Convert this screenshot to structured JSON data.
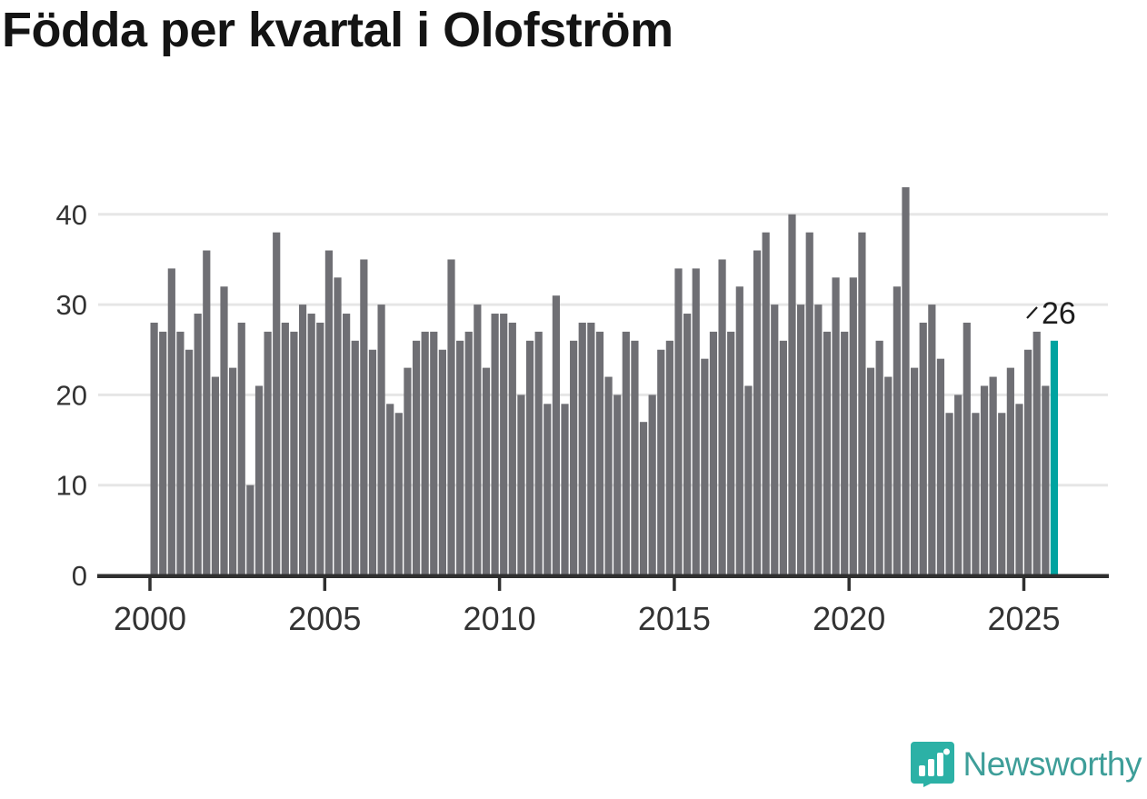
{
  "title": "Födda per kvartal i Olofström",
  "annotation": {
    "last_value_label": "26"
  },
  "logo": {
    "text": "Newsworthy",
    "icon": "newsworthy-bars-icon"
  },
  "colors": {
    "bar": "#6f6f74",
    "highlight": "#00a3a0",
    "grid": "#e6e6e6",
    "axis": "#2f2f2f",
    "tick_label": "#333333",
    "annotation_text": "#1d1d1d",
    "logo_icon": "#2cb1a6",
    "logo_text": "#3e9e99"
  },
  "chart_data": {
    "type": "bar",
    "title": "Födda per kvartal i Olofström",
    "xlabel": "",
    "ylabel": "",
    "start_quarter": "2000-Q1",
    "end_quarter": "2025-Q4",
    "x_tick_labels": [
      "2000",
      "2005",
      "2010",
      "2015",
      "2020",
      "2025"
    ],
    "y_tick_labels": [
      "0",
      "10",
      "20",
      "30",
      "40"
    ],
    "y_ticks": [
      0,
      10,
      20,
      30,
      40
    ],
    "ylim": [
      0,
      44
    ],
    "grid": "horizontal",
    "legend": "none",
    "highlight_index": 103,
    "highlight_label": "26",
    "series": [
      {
        "name": "Födda per kvartal",
        "values": [
          28,
          27,
          34,
          27,
          25,
          29,
          36,
          22,
          32,
          23,
          28,
          10,
          21,
          27,
          38,
          28,
          27,
          30,
          29,
          28,
          36,
          33,
          29,
          26,
          35,
          25,
          30,
          19,
          18,
          23,
          26,
          27,
          27,
          25,
          35,
          26,
          27,
          30,
          23,
          29,
          29,
          28,
          20,
          26,
          27,
          19,
          31,
          19,
          26,
          28,
          28,
          27,
          22,
          20,
          27,
          26,
          17,
          20,
          25,
          26,
          34,
          29,
          34,
          24,
          27,
          35,
          27,
          32,
          21,
          36,
          38,
          30,
          26,
          40,
          30,
          38,
          30,
          27,
          33,
          27,
          33,
          38,
          23,
          26,
          22,
          32,
          43,
          23,
          28,
          30,
          24,
          18,
          20,
          28,
          18,
          21,
          22,
          18,
          23,
          19,
          25,
          27,
          21,
          26
        ]
      }
    ]
  }
}
